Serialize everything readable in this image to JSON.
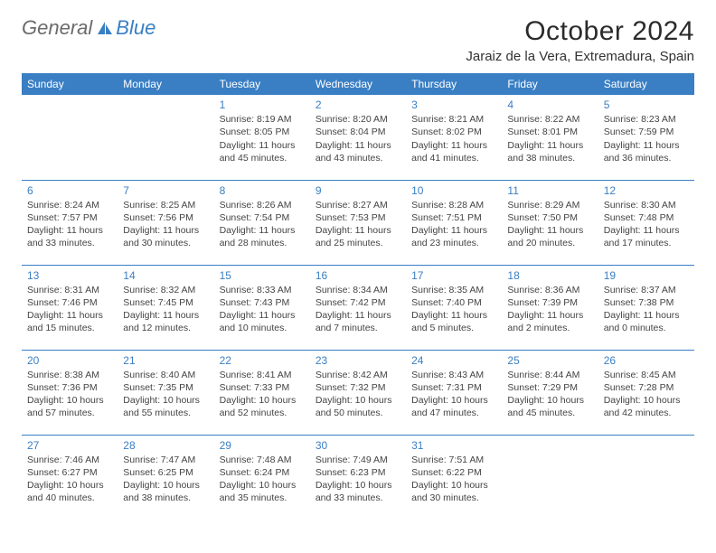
{
  "brand": {
    "part1": "General",
    "part2": "Blue"
  },
  "title": "October 2024",
  "location": "Jaraiz de la Vera, Extremadura, Spain",
  "colors": {
    "header_bg": "#3a7fc4",
    "header_text": "#ffffff",
    "daynum": "#3a7fc4",
    "border": "#3a7fc4",
    "body_text": "#444444",
    "page_bg": "#ffffff",
    "logo_gray": "#6b6b6b",
    "logo_blue": "#3a7fc4"
  },
  "weekdays": [
    "Sunday",
    "Monday",
    "Tuesday",
    "Wednesday",
    "Thursday",
    "Friday",
    "Saturday"
  ],
  "labels": {
    "sunrise": "Sunrise:",
    "sunset": "Sunset:",
    "daylight": "Daylight:"
  },
  "weeks": [
    [
      null,
      null,
      {
        "n": "1",
        "sr": "8:19 AM",
        "ss": "8:05 PM",
        "dl": "11 hours and 45 minutes."
      },
      {
        "n": "2",
        "sr": "8:20 AM",
        "ss": "8:04 PM",
        "dl": "11 hours and 43 minutes."
      },
      {
        "n": "3",
        "sr": "8:21 AM",
        "ss": "8:02 PM",
        "dl": "11 hours and 41 minutes."
      },
      {
        "n": "4",
        "sr": "8:22 AM",
        "ss": "8:01 PM",
        "dl": "11 hours and 38 minutes."
      },
      {
        "n": "5",
        "sr": "8:23 AM",
        "ss": "7:59 PM",
        "dl": "11 hours and 36 minutes."
      }
    ],
    [
      {
        "n": "6",
        "sr": "8:24 AM",
        "ss": "7:57 PM",
        "dl": "11 hours and 33 minutes."
      },
      {
        "n": "7",
        "sr": "8:25 AM",
        "ss": "7:56 PM",
        "dl": "11 hours and 30 minutes."
      },
      {
        "n": "8",
        "sr": "8:26 AM",
        "ss": "7:54 PM",
        "dl": "11 hours and 28 minutes."
      },
      {
        "n": "9",
        "sr": "8:27 AM",
        "ss": "7:53 PM",
        "dl": "11 hours and 25 minutes."
      },
      {
        "n": "10",
        "sr": "8:28 AM",
        "ss": "7:51 PM",
        "dl": "11 hours and 23 minutes."
      },
      {
        "n": "11",
        "sr": "8:29 AM",
        "ss": "7:50 PM",
        "dl": "11 hours and 20 minutes."
      },
      {
        "n": "12",
        "sr": "8:30 AM",
        "ss": "7:48 PM",
        "dl": "11 hours and 17 minutes."
      }
    ],
    [
      {
        "n": "13",
        "sr": "8:31 AM",
        "ss": "7:46 PM",
        "dl": "11 hours and 15 minutes."
      },
      {
        "n": "14",
        "sr": "8:32 AM",
        "ss": "7:45 PM",
        "dl": "11 hours and 12 minutes."
      },
      {
        "n": "15",
        "sr": "8:33 AM",
        "ss": "7:43 PM",
        "dl": "11 hours and 10 minutes."
      },
      {
        "n": "16",
        "sr": "8:34 AM",
        "ss": "7:42 PM",
        "dl": "11 hours and 7 minutes."
      },
      {
        "n": "17",
        "sr": "8:35 AM",
        "ss": "7:40 PM",
        "dl": "11 hours and 5 minutes."
      },
      {
        "n": "18",
        "sr": "8:36 AM",
        "ss": "7:39 PM",
        "dl": "11 hours and 2 minutes."
      },
      {
        "n": "19",
        "sr": "8:37 AM",
        "ss": "7:38 PM",
        "dl": "11 hours and 0 minutes."
      }
    ],
    [
      {
        "n": "20",
        "sr": "8:38 AM",
        "ss": "7:36 PM",
        "dl": "10 hours and 57 minutes."
      },
      {
        "n": "21",
        "sr": "8:40 AM",
        "ss": "7:35 PM",
        "dl": "10 hours and 55 minutes."
      },
      {
        "n": "22",
        "sr": "8:41 AM",
        "ss": "7:33 PM",
        "dl": "10 hours and 52 minutes."
      },
      {
        "n": "23",
        "sr": "8:42 AM",
        "ss": "7:32 PM",
        "dl": "10 hours and 50 minutes."
      },
      {
        "n": "24",
        "sr": "8:43 AM",
        "ss": "7:31 PM",
        "dl": "10 hours and 47 minutes."
      },
      {
        "n": "25",
        "sr": "8:44 AM",
        "ss": "7:29 PM",
        "dl": "10 hours and 45 minutes."
      },
      {
        "n": "26",
        "sr": "8:45 AM",
        "ss": "7:28 PM",
        "dl": "10 hours and 42 minutes."
      }
    ],
    [
      {
        "n": "27",
        "sr": "7:46 AM",
        "ss": "6:27 PM",
        "dl": "10 hours and 40 minutes."
      },
      {
        "n": "28",
        "sr": "7:47 AM",
        "ss": "6:25 PM",
        "dl": "10 hours and 38 minutes."
      },
      {
        "n": "29",
        "sr": "7:48 AM",
        "ss": "6:24 PM",
        "dl": "10 hours and 35 minutes."
      },
      {
        "n": "30",
        "sr": "7:49 AM",
        "ss": "6:23 PM",
        "dl": "10 hours and 33 minutes."
      },
      {
        "n": "31",
        "sr": "7:51 AM",
        "ss": "6:22 PM",
        "dl": "10 hours and 30 minutes."
      },
      null,
      null
    ]
  ]
}
